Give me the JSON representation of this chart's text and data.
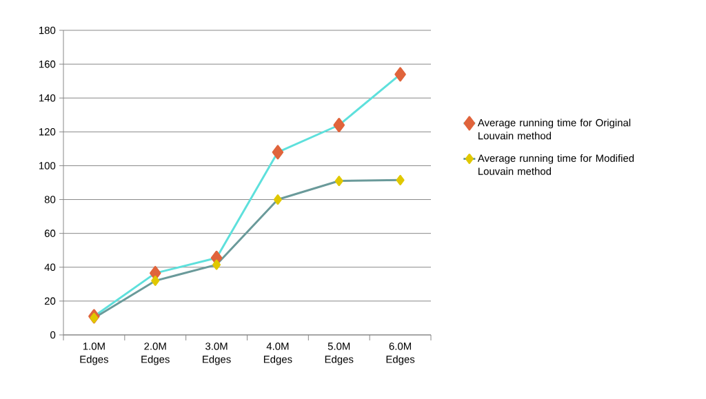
{
  "chart_data": {
    "type": "line",
    "categories": [
      "1.0M Edges",
      "2.0M Edges",
      "3.0M Edges",
      "4.0M Edges",
      "5.0M Edges",
      "6.0M Edges"
    ],
    "series": [
      {
        "name": "Average running time for Original Louvain method",
        "color": "#5ee0dc",
        "colors": [
          "#e0643c",
          "#e0643c",
          "#e0643c",
          "#e0643c",
          "#e0643c",
          "#e0643c"
        ],
        "values": [
          11,
          36.5,
          45.5,
          108,
          124,
          154
        ]
      },
      {
        "name": "Average running time for Modified Louvain method",
        "color": "#6a9a9a",
        "colors": [
          "#e0c800",
          "#e0c800",
          "#e0c800",
          "#e0c800",
          "#e0c800",
          "#e0c800"
        ],
        "values": [
          10,
          32,
          41.5,
          80,
          91,
          91.5
        ]
      }
    ],
    "ylim": [
      0,
      180
    ],
    "yticks": [
      0,
      20,
      40,
      60,
      80,
      100,
      120,
      140,
      160,
      180
    ],
    "grid": "y",
    "legend": "right",
    "marker": "diamond",
    "line_style": "solid"
  }
}
